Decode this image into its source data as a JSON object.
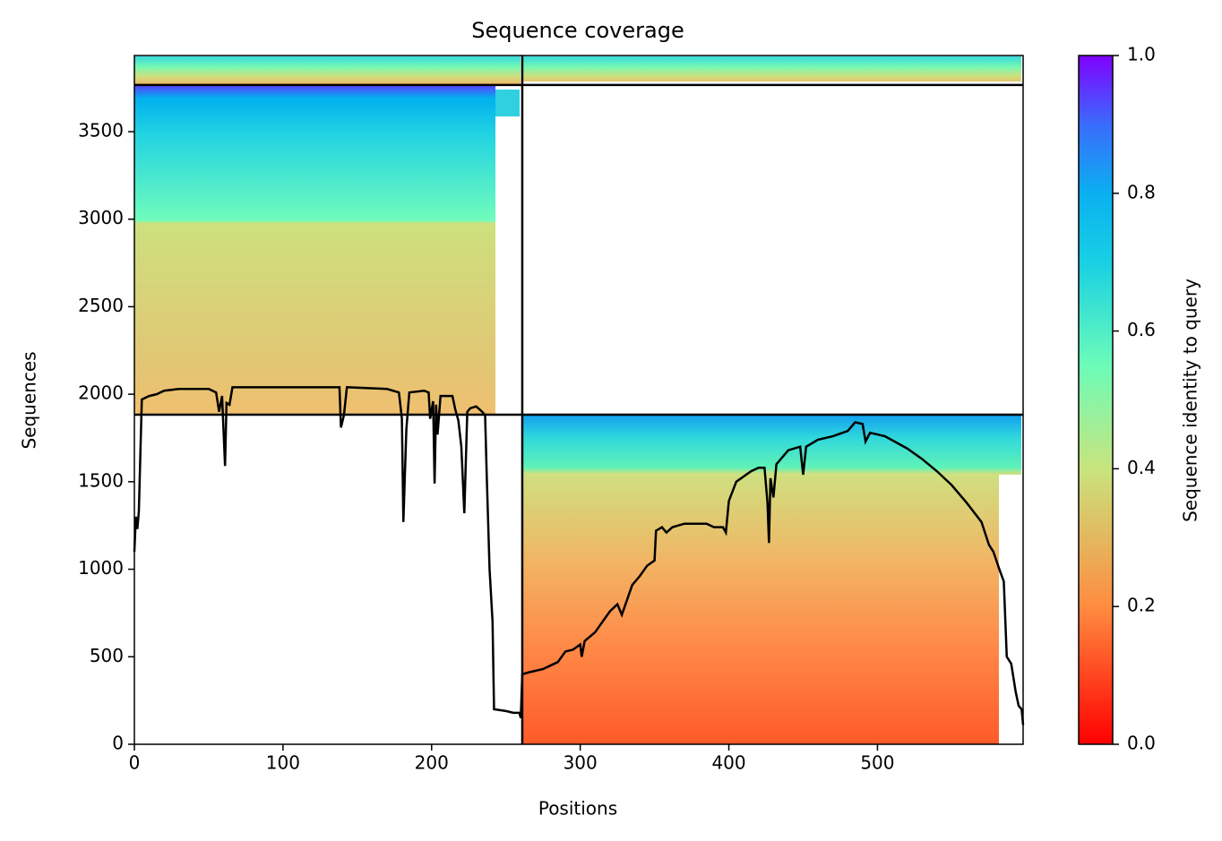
{
  "chart_data": {
    "type": "coverage",
    "title": "Sequence coverage",
    "xlabel": "Positions",
    "ylabel": "Sequences",
    "xlim": [
      0,
      598
    ],
    "ylim": [
      0,
      3935
    ],
    "xticks": [
      0,
      100,
      200,
      300,
      400,
      500
    ],
    "yticks": [
      0,
      500,
      1000,
      1500,
      2000,
      2500,
      3000,
      3500
    ],
    "dividers": {
      "x": [
        261
      ],
      "y": [
        1883,
        3767
      ]
    },
    "series": [
      {
        "color": "#000000",
        "x": [
          0,
          1,
          2,
          3,
          5,
          10,
          15,
          20,
          30,
          40,
          50,
          55,
          57,
          59,
          61,
          62,
          64,
          66,
          100,
          130,
          138,
          139,
          141,
          143,
          170,
          178,
          180,
          181,
          183,
          185,
          195,
          198,
          199,
          201,
          202,
          203,
          204,
          206,
          214,
          216,
          218,
          220,
          222,
          224,
          226,
          230,
          234,
          236,
          237,
          239,
          241,
          242,
          250,
          255,
          259,
          260,
          261,
          265,
          275,
          280,
          285,
          290,
          295,
          300,
          301,
          303,
          310,
          315,
          320,
          325,
          328,
          335,
          340,
          345,
          350,
          351,
          355,
          358,
          362,
          370,
          385,
          390,
          396,
          398,
          400,
          405,
          415,
          420,
          424,
          426,
          427,
          428,
          430,
          432,
          440,
          448,
          450,
          452,
          460,
          470,
          480,
          485,
          490,
          492,
          495,
          505,
          520,
          530,
          540,
          550,
          560,
          570,
          575,
          578,
          582,
          585,
          587,
          590,
          593,
          595,
          597,
          598
        ],
        "values": [
          1100,
          1300,
          1230,
          1330,
          1970,
          1990,
          2000,
          2020,
          2030,
          2030,
          2030,
          2010,
          1900,
          1990,
          1590,
          1950,
          1940,
          2040,
          2040,
          2040,
          2040,
          1810,
          1880,
          2040,
          2030,
          2010,
          1860,
          1270,
          1800,
          2010,
          2020,
          2010,
          1860,
          1960,
          1490,
          1940,
          1770,
          1990,
          1990,
          1910,
          1850,
          1700,
          1320,
          1900,
          1920,
          1930,
          1900,
          1880,
          1560,
          1000,
          700,
          200,
          190,
          180,
          180,
          150,
          400,
          410,
          430,
          450,
          470,
          530,
          540,
          570,
          500,
          590,
          640,
          700,
          760,
          800,
          740,
          910,
          960,
          1020,
          1050,
          1220,
          1240,
          1210,
          1240,
          1260,
          1260,
          1240,
          1240,
          1210,
          1390,
          1500,
          1560,
          1580,
          1580,
          1380,
          1150,
          1520,
          1410,
          1600,
          1680,
          1700,
          1540,
          1700,
          1740,
          1760,
          1790,
          1840,
          1830,
          1730,
          1780,
          1760,
          1690,
          1630,
          1560,
          1480,
          1380,
          1270,
          1140,
          1100,
          1000,
          930,
          500,
          460,
          300,
          220,
          200,
          110
        ]
      }
    ],
    "colorbar": {
      "label": "Sequence identity to query",
      "lim": [
        0,
        1
      ],
      "ticks": [
        {
          "value": 0,
          "label": "0.0"
        },
        {
          "value": 0.2,
          "label": "0.2"
        },
        {
          "value": 0.4,
          "label": "0.4"
        },
        {
          "value": 0.6,
          "label": "0.6"
        },
        {
          "value": 0.8,
          "label": "0.8"
        },
        {
          "value": 1,
          "label": "1.0"
        }
      ]
    }
  }
}
